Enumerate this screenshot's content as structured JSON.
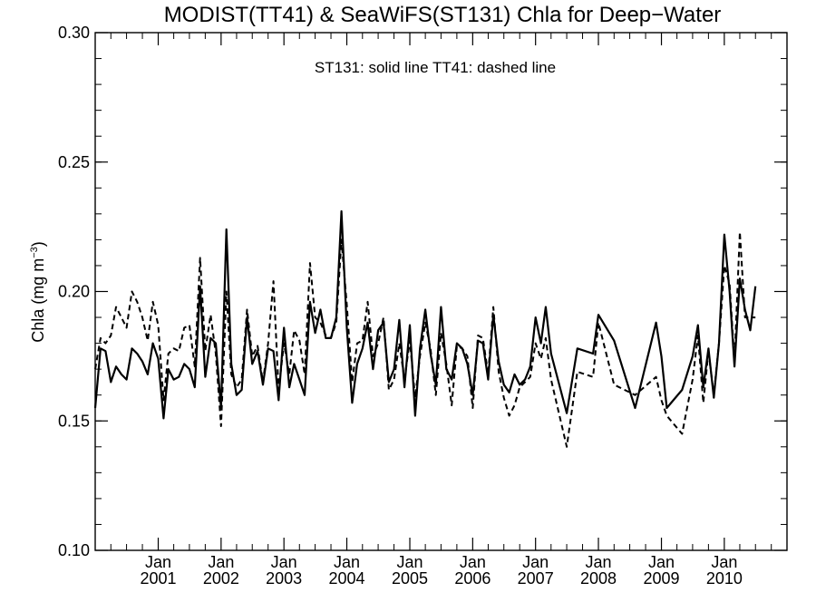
{
  "chart_data": {
    "type": "line",
    "title": "MODIST(TT41) & SeaWiFS(ST131)  Chla for Deep−Water",
    "ylabel": "Chla (mg m",
    "ylabel_sup": "−3",
    "ylabel_close": ")",
    "annotation": "ST131: solid line   TT41: dashed line",
    "ylim": [
      0.1,
      0.3
    ],
    "xlim": [
      "2000-01-01",
      "2010-12-31"
    ],
    "yticks": [
      "0.10",
      "0.15",
      "0.20",
      "0.25",
      "0.30"
    ],
    "xticks": [
      {
        "top": "Jan",
        "bottom": "2001",
        "date": "2001-01-01"
      },
      {
        "top": "Jan",
        "bottom": "2002",
        "date": "2002-01-01"
      },
      {
        "top": "Jan",
        "bottom": "2003",
        "date": "2003-01-01"
      },
      {
        "top": "Jan",
        "bottom": "2004",
        "date": "2004-01-01"
      },
      {
        "top": "Jan",
        "bottom": "2005",
        "date": "2005-01-01"
      },
      {
        "top": "Jan",
        "bottom": "2006",
        "date": "2006-01-01"
      },
      {
        "top": "Jan",
        "bottom": "2007",
        "date": "2007-01-01"
      },
      {
        "top": "Jan",
        "bottom": "2008",
        "date": "2008-01-01"
      },
      {
        "top": "Jan",
        "bottom": "2009",
        "date": "2009-01-01"
      },
      {
        "top": "Jan",
        "bottom": "2010",
        "date": "2010-01-01"
      }
    ],
    "grid": false,
    "series": [
      {
        "name": "ST131",
        "style": "solid",
        "color": "#000000",
        "points": [
          [
            "2000-01-01",
            0.155
          ],
          [
            "2000-02-01",
            0.178
          ],
          [
            "2000-03-01",
            0.177
          ],
          [
            "2000-04-01",
            0.165
          ],
          [
            "2000-05-01",
            0.171
          ],
          [
            "2000-06-01",
            0.168
          ],
          [
            "2000-07-01",
            0.166
          ],
          [
            "2000-08-01",
            0.178
          ],
          [
            "2000-09-01",
            0.176
          ],
          [
            "2000-10-01",
            0.173
          ],
          [
            "2000-11-01",
            0.168
          ],
          [
            "2000-12-01",
            0.18
          ],
          [
            "2001-01-01",
            0.174
          ],
          [
            "2001-02-01",
            0.151
          ],
          [
            "2001-03-01",
            0.17
          ],
          [
            "2001-04-01",
            0.166
          ],
          [
            "2001-05-01",
            0.167
          ],
          [
            "2001-06-01",
            0.172
          ],
          [
            "2001-07-01",
            0.17
          ],
          [
            "2001-08-01",
            0.163
          ],
          [
            "2001-09-01",
            0.202
          ],
          [
            "2001-10-01",
            0.167
          ],
          [
            "2001-11-01",
            0.182
          ],
          [
            "2001-12-01",
            0.18
          ],
          [
            "2002-01-01",
            0.155
          ],
          [
            "2002-02-01",
            0.224
          ],
          [
            "2002-03-01",
            0.172
          ],
          [
            "2002-04-01",
            0.16
          ],
          [
            "2002-05-01",
            0.162
          ],
          [
            "2002-06-01",
            0.19
          ],
          [
            "2002-07-01",
            0.172
          ],
          [
            "2002-08-01",
            0.177
          ],
          [
            "2002-09-01",
            0.164
          ],
          [
            "2002-10-01",
            0.178
          ],
          [
            "2002-11-01",
            0.177
          ],
          [
            "2002-12-01",
            0.158
          ],
          [
            "2003-01-01",
            0.186
          ],
          [
            "2003-02-01",
            0.163
          ],
          [
            "2003-03-01",
            0.172
          ],
          [
            "2003-04-01",
            0.166
          ],
          [
            "2003-05-01",
            0.16
          ],
          [
            "2003-06-01",
            0.196
          ],
          [
            "2003-07-01",
            0.184
          ],
          [
            "2003-08-01",
            0.193
          ],
          [
            "2003-09-01",
            0.182
          ],
          [
            "2003-10-01",
            0.182
          ],
          [
            "2003-11-01",
            0.19
          ],
          [
            "2003-12-01",
            0.231
          ],
          [
            "2004-01-01",
            0.186
          ],
          [
            "2004-02-01",
            0.157
          ],
          [
            "2004-03-01",
            0.172
          ],
          [
            "2004-04-01",
            0.178
          ],
          [
            "2004-05-01",
            0.188
          ],
          [
            "2004-06-01",
            0.17
          ],
          [
            "2004-07-01",
            0.185
          ],
          [
            "2004-08-01",
            0.188
          ],
          [
            "2004-09-01",
            0.165
          ],
          [
            "2004-10-01",
            0.17
          ],
          [
            "2004-11-01",
            0.189
          ],
          [
            "2004-12-01",
            0.163
          ],
          [
            "2005-01-01",
            0.187
          ],
          [
            "2005-02-01",
            0.152
          ],
          [
            "2005-03-01",
            0.178
          ],
          [
            "2005-04-01",
            0.193
          ],
          [
            "2005-05-01",
            0.176
          ],
          [
            "2005-06-01",
            0.164
          ],
          [
            "2005-07-01",
            0.194
          ],
          [
            "2005-08-01",
            0.17
          ],
          [
            "2005-09-01",
            0.166
          ],
          [
            "2005-10-01",
            0.18
          ],
          [
            "2005-11-01",
            0.178
          ],
          [
            "2005-12-01",
            0.172
          ],
          [
            "2006-01-01",
            0.16
          ],
          [
            "2006-02-01",
            0.181
          ],
          [
            "2006-03-01",
            0.18
          ],
          [
            "2006-04-01",
            0.166
          ],
          [
            "2006-05-01",
            0.191
          ],
          [
            "2006-06-01",
            0.173
          ],
          [
            "2006-07-01",
            0.164
          ],
          [
            "2006-08-01",
            0.161
          ],
          [
            "2006-09-01",
            0.168
          ],
          [
            "2006-10-01",
            0.164
          ],
          [
            "2006-11-01",
            0.166
          ],
          [
            "2006-12-01",
            0.171
          ],
          [
            "2007-01-01",
            0.19
          ],
          [
            "2007-02-01",
            0.18
          ],
          [
            "2007-03-01",
            0.194
          ],
          [
            "2007-04-01",
            0.176
          ],
          [
            "2007-07-01",
            0.153
          ],
          [
            "2007-09-01",
            0.178
          ],
          [
            "2007-12-01",
            0.176
          ],
          [
            "2008-01-01",
            0.191
          ],
          [
            "2008-04-01",
            0.181
          ],
          [
            "2008-08-01",
            0.155
          ],
          [
            "2008-12-01",
            0.188
          ],
          [
            "2009-01-01",
            0.175
          ],
          [
            "2009-02-01",
            0.155
          ],
          [
            "2009-05-01",
            0.162
          ],
          [
            "2009-07-01",
            0.175
          ],
          [
            "2009-08-01",
            0.187
          ],
          [
            "2009-09-01",
            0.163
          ],
          [
            "2009-10-01",
            0.178
          ],
          [
            "2009-11-01",
            0.159
          ],
          [
            "2009-12-01",
            0.18
          ],
          [
            "2010-01-01",
            0.222
          ],
          [
            "2010-02-01",
            0.2
          ],
          [
            "2010-03-01",
            0.171
          ],
          [
            "2010-04-01",
            0.205
          ],
          [
            "2010-05-01",
            0.193
          ],
          [
            "2010-06-01",
            0.185
          ],
          [
            "2010-07-01",
            0.202
          ]
        ]
      },
      {
        "name": "TT41",
        "style": "dashed",
        "color": "#000000",
        "points": [
          [
            "2000-01-01",
            0.17
          ],
          [
            "2000-02-01",
            0.182
          ],
          [
            "2000-03-01",
            0.18
          ],
          [
            "2000-04-01",
            0.183
          ],
          [
            "2000-05-01",
            0.194
          ],
          [
            "2000-06-01",
            0.19
          ],
          [
            "2000-07-01",
            0.186
          ],
          [
            "2000-08-01",
            0.2
          ],
          [
            "2000-09-01",
            0.196
          ],
          [
            "2000-10-01",
            0.19
          ],
          [
            "2000-11-01",
            0.181
          ],
          [
            "2000-12-01",
            0.196
          ],
          [
            "2001-01-01",
            0.187
          ],
          [
            "2001-02-01",
            0.158
          ],
          [
            "2001-03-01",
            0.176
          ],
          [
            "2001-04-01",
            0.178
          ],
          [
            "2001-05-01",
            0.177
          ],
          [
            "2001-06-01",
            0.186
          ],
          [
            "2001-07-01",
            0.187
          ],
          [
            "2001-08-01",
            0.171
          ],
          [
            "2001-09-01",
            0.213
          ],
          [
            "2001-10-01",
            0.177
          ],
          [
            "2001-11-01",
            0.191
          ],
          [
            "2001-12-01",
            0.176
          ],
          [
            "2002-01-01",
            0.148
          ],
          [
            "2002-02-01",
            0.2
          ],
          [
            "2002-03-01",
            0.168
          ],
          [
            "2002-04-01",
            0.163
          ],
          [
            "2002-05-01",
            0.166
          ],
          [
            "2002-06-01",
            0.193
          ],
          [
            "2002-07-01",
            0.175
          ],
          [
            "2002-08-01",
            0.179
          ],
          [
            "2002-09-01",
            0.165
          ],
          [
            "2002-10-01",
            0.18
          ],
          [
            "2002-11-01",
            0.204
          ],
          [
            "2002-12-01",
            0.162
          ],
          [
            "2003-01-01",
            0.18
          ],
          [
            "2003-02-01",
            0.168
          ],
          [
            "2003-03-01",
            0.185
          ],
          [
            "2003-04-01",
            0.181
          ],
          [
            "2003-05-01",
            0.168
          ],
          [
            "2003-06-01",
            0.211
          ],
          [
            "2003-07-01",
            0.19
          ],
          [
            "2003-08-01",
            0.188
          ],
          [
            "2003-09-01",
            0.183
          ],
          [
            "2003-10-01",
            0.182
          ],
          [
            "2003-11-01",
            0.188
          ],
          [
            "2003-12-01",
            0.22
          ],
          [
            "2004-01-01",
            0.195
          ],
          [
            "2004-02-01",
            0.165
          ],
          [
            "2004-03-01",
            0.18
          ],
          [
            "2004-04-01",
            0.181
          ],
          [
            "2004-05-01",
            0.196
          ],
          [
            "2004-06-01",
            0.175
          ],
          [
            "2004-07-01",
            0.18
          ],
          [
            "2004-08-01",
            0.19
          ],
          [
            "2004-09-01",
            0.162
          ],
          [
            "2004-10-01",
            0.166
          ],
          [
            "2004-11-01",
            0.18
          ],
          [
            "2004-12-01",
            0.166
          ],
          [
            "2005-01-01",
            0.181
          ],
          [
            "2005-02-01",
            0.159
          ],
          [
            "2005-03-01",
            0.175
          ],
          [
            "2005-04-01",
            0.188
          ],
          [
            "2005-05-01",
            0.178
          ],
          [
            "2005-06-01",
            0.16
          ],
          [
            "2005-07-01",
            0.184
          ],
          [
            "2005-08-01",
            0.172
          ],
          [
            "2005-09-01",
            0.156
          ],
          [
            "2005-10-01",
            0.179
          ],
          [
            "2005-11-01",
            0.178
          ],
          [
            "2005-12-01",
            0.175
          ],
          [
            "2006-01-01",
            0.155
          ],
          [
            "2006-02-01",
            0.183
          ],
          [
            "2006-03-01",
            0.182
          ],
          [
            "2006-04-01",
            0.168
          ],
          [
            "2006-05-01",
            0.194
          ],
          [
            "2006-06-01",
            0.169
          ],
          [
            "2006-07-01",
            0.159
          ],
          [
            "2006-08-01",
            0.152
          ],
          [
            "2006-09-01",
            0.156
          ],
          [
            "2006-10-01",
            0.163
          ],
          [
            "2006-11-01",
            0.165
          ],
          [
            "2006-12-01",
            0.167
          ],
          [
            "2007-01-01",
            0.18
          ],
          [
            "2007-02-01",
            0.174
          ],
          [
            "2007-03-01",
            0.182
          ],
          [
            "2007-04-01",
            0.166
          ],
          [
            "2007-07-01",
            0.14
          ],
          [
            "2007-09-01",
            0.169
          ],
          [
            "2007-12-01",
            0.167
          ],
          [
            "2008-01-01",
            0.188
          ],
          [
            "2008-04-01",
            0.164
          ],
          [
            "2008-08-01",
            0.16
          ],
          [
            "2008-12-01",
            0.167
          ],
          [
            "2009-01-01",
            0.158
          ],
          [
            "2009-02-01",
            0.152
          ],
          [
            "2009-05-01",
            0.145
          ],
          [
            "2009-07-01",
            0.166
          ],
          [
            "2009-08-01",
            0.183
          ],
          [
            "2009-09-01",
            0.157
          ],
          [
            "2009-10-01",
            0.177
          ],
          [
            "2009-11-01",
            0.16
          ],
          [
            "2009-12-01",
            0.18
          ],
          [
            "2010-01-01",
            0.21
          ],
          [
            "2010-02-01",
            0.203
          ],
          [
            "2010-03-01",
            0.173
          ],
          [
            "2010-04-01",
            0.223
          ],
          [
            "2010-05-01",
            0.19
          ],
          [
            "2010-06-01",
            0.19
          ],
          [
            "2010-07-01",
            0.19
          ]
        ]
      }
    ]
  }
}
